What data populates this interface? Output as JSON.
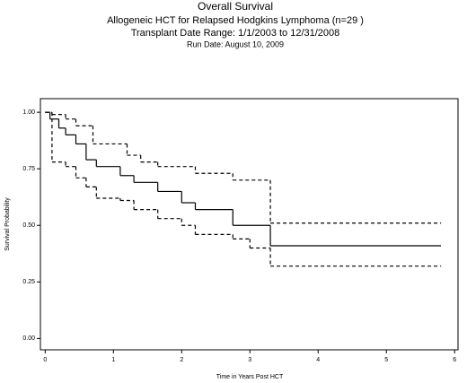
{
  "chart_data": {
    "type": "step",
    "title": "Overall Survival",
    "subtitles": [
      "Allogeneic HCT for Relapsed Hodgkins Lymphoma (n=29 )",
      "Transplant Date Range: 1/1/2003 to 12/31/2008",
      "Run Date: August 10, 2009"
    ],
    "x_label": "Time in Years Post HCT",
    "y_label": "Survival Probability",
    "xlim": [
      -0.07,
      6.05
    ],
    "ylim": [
      -0.05,
      1.06
    ],
    "xticks": [
      0,
      1,
      2,
      3,
      4,
      5,
      6
    ],
    "yticks": [
      {
        "value": 0,
        "label": "0.00"
      },
      {
        "value": 0.25,
        "label": "0.25"
      },
      {
        "value": 0.5,
        "label": "0.50"
      },
      {
        "value": 0.75,
        "label": "0.75"
      },
      {
        "value": 1,
        "label": "1.00"
      }
    ],
    "series": [
      {
        "color": "#000000",
        "style": "solid",
        "x": [
          0,
          0.07,
          0.2,
          0.3,
          0.45,
          0.6,
          0.75,
          1.1,
          1.3,
          1.65,
          2.0,
          2.2,
          2.75,
          3.3,
          5.8
        ],
        "values": [
          1,
          0.97,
          0.93,
          0.9,
          0.86,
          0.79,
          0.76,
          0.72,
          0.69,
          0.65,
          0.6,
          0.57,
          0.5,
          0.41,
          0.41
        ]
      },
      {
        "color": "#000000",
        "style": "dashed",
        "x": [
          0,
          0.1,
          0.3,
          0.45,
          0.7,
          1.2,
          1.4,
          1.65,
          2.2,
          2.75,
          3.3,
          5.8
        ],
        "values": [
          1,
          0.99,
          0.97,
          0.94,
          0.86,
          0.81,
          0.78,
          0.76,
          0.73,
          0.7,
          0.51,
          0.51
        ]
      },
      {
        "color": "#000000",
        "style": "dashed",
        "x": [
          0,
          0.1,
          0.3,
          0.45,
          0.6,
          0.75,
          1.1,
          1.3,
          1.65,
          2.0,
          2.2,
          2.75,
          3.0,
          3.3,
          5.8
        ],
        "values": [
          1,
          0.78,
          0.76,
          0.71,
          0.67,
          0.62,
          0.61,
          0.57,
          0.53,
          0.5,
          0.46,
          0.44,
          0.4,
          0.32,
          0.32
        ]
      }
    ]
  }
}
